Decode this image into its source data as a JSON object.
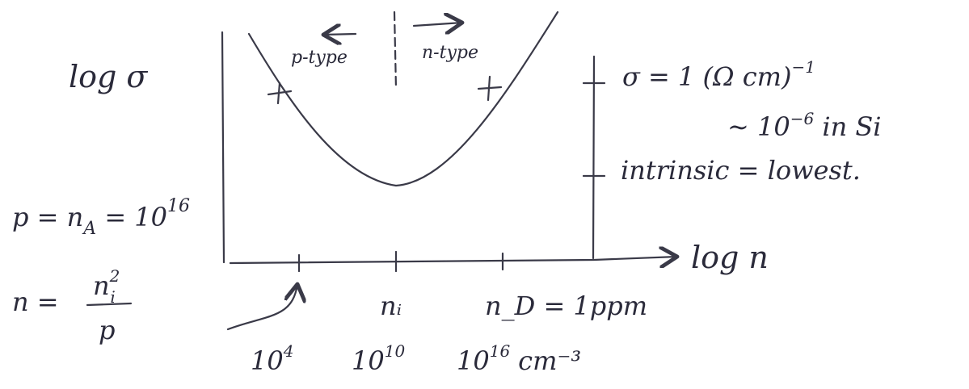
{
  "y_axis_label": "log σ",
  "x_axis_label": "log n",
  "regions": {
    "left": "p-type",
    "right": "n-type"
  },
  "sigma_note": {
    "main": "σ = 1 (Ω cm)",
    "exp": "−1"
  },
  "si_note": {
    "main": "∼ 10",
    "exp": "−6",
    "rest": " in Si"
  },
  "intrinsic_note": "intrinsic = lowest.",
  "acceptor_eq": {
    "a": "p = n",
    "sub": "A",
    "b": " = 10",
    "exp": "16"
  },
  "electron_eq": {
    "lhs": "n =",
    "num": "n",
    "num_sup": "2",
    "num_sub": "i",
    "den": "p"
  },
  "x_ticks": [
    {
      "symbol": null,
      "base": "10",
      "exp": "4",
      "unit": null
    },
    {
      "symbol": "nᵢ",
      "base": "10",
      "exp": "10",
      "unit": null
    },
    {
      "symbol": "n_D = 1ppm",
      "base": "10",
      "exp": "16",
      "unit": "cm⁻³"
    }
  ]
}
